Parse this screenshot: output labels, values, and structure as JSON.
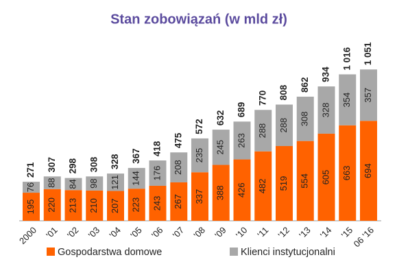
{
  "chart_data": {
    "type": "stacked-bar",
    "title": "Stan zobowiązań (w mld zł)",
    "categories": [
      "2000",
      "'01",
      "'02",
      "'03",
      "'04",
      "'05",
      "'06",
      "'07",
      "'08",
      "'09",
      "'10",
      "'11",
      "'12",
      "'13",
      "'14",
      "'15",
      "06 '16"
    ],
    "series": [
      {
        "name": "Gospodarstwa domowe",
        "color": "#ff6200",
        "values": [
          195,
          220,
          213,
          210,
          207,
          223,
          243,
          267,
          337,
          388,
          426,
          482,
          519,
          554,
          605,
          663,
          694
        ]
      },
      {
        "name": "Klienci instytucjonalni",
        "color": "#a8a8a8",
        "values": [
          76,
          88,
          84,
          98,
          121,
          144,
          176,
          208,
          235,
          245,
          263,
          288,
          288,
          308,
          328,
          354,
          357
        ]
      }
    ],
    "totals": {
      "values": [
        271,
        307,
        298,
        308,
        328,
        367,
        418,
        475,
        572,
        632,
        689,
        770,
        808,
        862,
        934,
        1016,
        1051
      ],
      "value_labels": [
        "271",
        "307",
        "298",
        "308",
        "328",
        "367",
        "418",
        "475",
        "572",
        "632",
        "689",
        "770",
        "808",
        "862",
        "934",
        "1 016",
        "1 051"
      ]
    }
  }
}
